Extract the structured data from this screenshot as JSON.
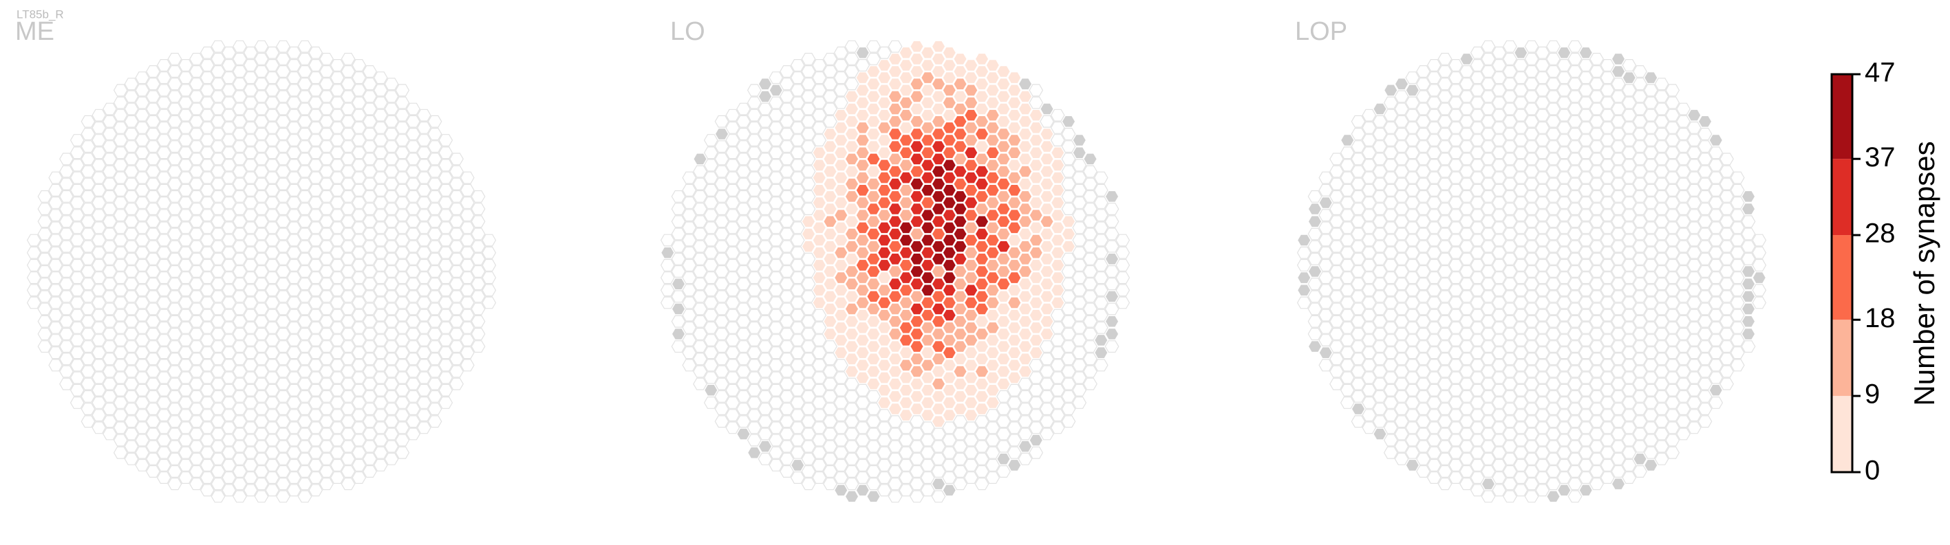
{
  "header": {
    "title": "LT85b_R",
    "panels": [
      "ME",
      "LO",
      "LOP"
    ]
  },
  "chart_data": {
    "type": "colorbar",
    "label": "Number of synapses",
    "ylim": [
      0,
      47
    ],
    "yticks": [
      0,
      9,
      18,
      28,
      37,
      47
    ],
    "colors": [
      "#fee4d8",
      "#fcb499",
      "#fb6a4a",
      "#de2d26",
      "#a50f15"
    ]
  }
}
